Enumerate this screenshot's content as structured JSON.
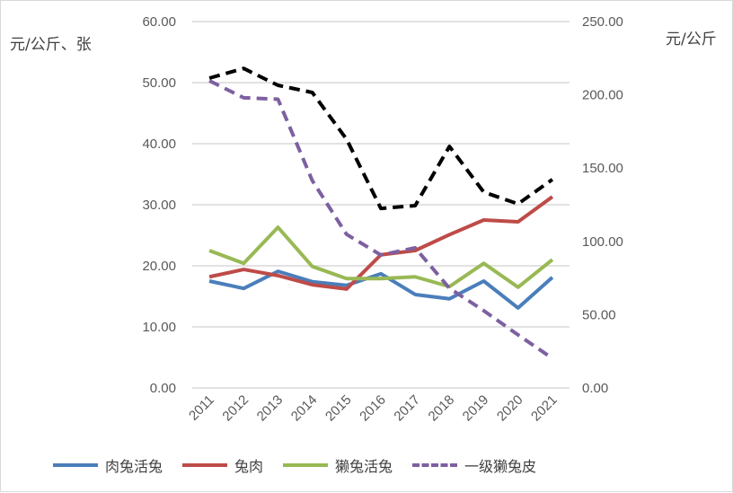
{
  "chart_data": {
    "type": "line",
    "x": [
      "2011",
      "2012",
      "2013",
      "2014",
      "2015",
      "2016",
      "2017",
      "2018",
      "2019",
      "2020",
      "2021"
    ],
    "y_left": {
      "label": "元/公斤、张",
      "lim": [
        0,
        60
      ],
      "ticks": [
        "0.00",
        "10.00",
        "20.00",
        "30.00",
        "40.00",
        "50.00",
        "60.00"
      ]
    },
    "y_right": {
      "label": "元/公斤",
      "lim": [
        0,
        250
      ],
      "ticks": [
        "0.00",
        "50.00",
        "100.00",
        "150.00",
        "200.00",
        "250.00"
      ]
    },
    "grid": true,
    "legend_position": "bottom",
    "series": [
      {
        "name": "肉兔活兔",
        "axis": "left",
        "color": "#4a7ebb",
        "dash": false,
        "values": [
          17.5,
          16.3,
          19.1,
          17.4,
          16.8,
          18.7,
          15.3,
          14.6,
          17.5,
          13.1,
          18.1
        ]
      },
      {
        "name": "兔肉",
        "axis": "left",
        "color": "#be4b48",
        "dash": false,
        "values": [
          18.2,
          19.4,
          18.4,
          16.9,
          16.2,
          21.8,
          22.5,
          25.1,
          27.5,
          27.2,
          31.3
        ]
      },
      {
        "name": "獭兔活兔",
        "axis": "left",
        "color": "#98b954",
        "dash": false,
        "values": [
          22.5,
          20.4,
          26.3,
          19.9,
          17.9,
          17.9,
          18.2,
          16.6,
          20.4,
          16.5,
          21.0
        ]
      },
      {
        "name": "一级獭兔皮",
        "axis": "right",
        "color": "#7d60a0",
        "dash": true,
        "values": [
          209.6,
          198,
          197,
          141.5,
          104.8,
          90.7,
          95.6,
          68,
          52.7,
          36.2,
          20.2
        ]
      },
      {
        "axis": "right",
        "color": "#000000",
        "dash": true,
        "values": [
          211.4,
          218,
          206.5,
          201.6,
          169.7,
          122.5,
          124.4,
          164.8,
          133.6,
          125.6,
          142.2
        ]
      }
    ]
  }
}
